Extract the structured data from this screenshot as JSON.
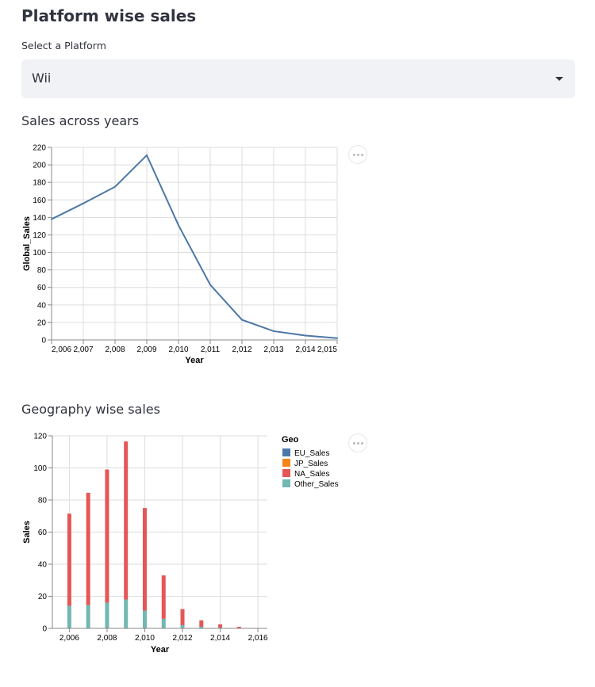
{
  "page": {
    "title": "Platform wise sales"
  },
  "platform_select": {
    "label": "Select a Platform",
    "value": "Wii"
  },
  "line_section": {
    "title": "Sales across years"
  },
  "bar_section": {
    "title": "Geography wise sales"
  },
  "colors": {
    "line": "#4c78a8",
    "EU_Sales": "#4c78a8",
    "JP_Sales": "#f58518",
    "NA_Sales": "#e45756",
    "Other_Sales": "#72b7b2"
  },
  "chart_data": [
    {
      "type": "line",
      "title": "",
      "xlabel": "Year",
      "ylabel": "Global_Sales",
      "xlim": [
        2006,
        2015
      ],
      "ylim": [
        0,
        220
      ],
      "x_ticks": [
        "2,006",
        "2,007",
        "2,008",
        "2,009",
        "2,010",
        "2,011",
        "2,012",
        "2,013",
        "2,014",
        "2,015"
      ],
      "y_ticks": [
        "0",
        "20",
        "40",
        "60",
        "80",
        "100",
        "120",
        "140",
        "160",
        "180",
        "200",
        "220"
      ],
      "grid": true,
      "series": [
        {
          "x": [
            2006,
            2007,
            2008,
            2009,
            2010,
            2011,
            2012,
            2013,
            2014,
            2015
          ],
          "values": [
            138,
            156,
            175,
            211,
            131,
            63,
            23,
            10,
            5,
            2
          ]
        }
      ]
    },
    {
      "type": "bar",
      "stacked": true,
      "title": "",
      "xlabel": "Year",
      "ylabel": "Sales",
      "xlim": [
        2005.1,
        2016.5
      ],
      "ylim": [
        0,
        120
      ],
      "x_ticks": [
        "2,006",
        "2,008",
        "2,010",
        "2,012",
        "2,014",
        "2,016"
      ],
      "y_ticks": [
        "0",
        "20",
        "40",
        "60",
        "80",
        "100",
        "120"
      ],
      "grid": true,
      "legend": {
        "title": "Geo",
        "position": "right",
        "entries": [
          "EU_Sales",
          "JP_Sales",
          "NA_Sales",
          "Other_Sales"
        ]
      },
      "categories": [
        2006,
        2007,
        2008,
        2009,
        2010,
        2011,
        2012,
        2013,
        2014,
        2015
      ],
      "series": [
        {
          "name": "Other_Sales",
          "values": [
            14,
            14.5,
            16,
            18,
            11,
            6,
            2,
            1,
            0.5,
            0.2
          ]
        },
        {
          "name": "NA_Sales",
          "values": [
            57.5,
            70,
            83,
            98.5,
            64,
            27,
            10,
            4,
            2,
            0.8
          ]
        }
      ]
    }
  ]
}
